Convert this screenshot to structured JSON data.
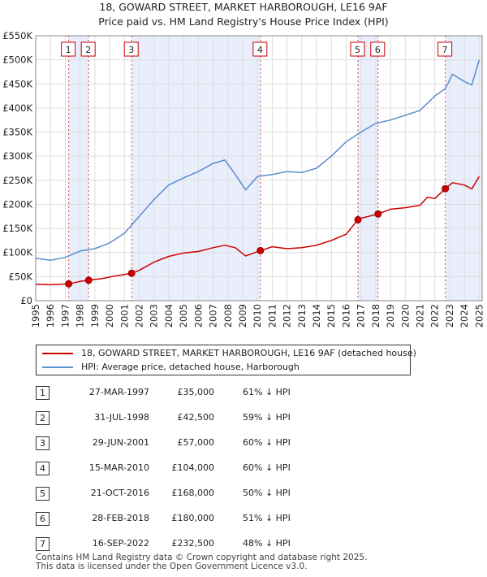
{
  "chart_data": {
    "type": "line",
    "title": "18, GOWARD STREET, MARKET HARBOROUGH, LE16 9AF",
    "subtitle": "Price paid vs. HM Land Registry's House Price Index (HPI)",
    "ylim": [
      0,
      550000
    ],
    "xlim": [
      1995,
      2025.2
    ],
    "yticks": [
      {
        "value": 0,
        "label": "£0"
      },
      {
        "value": 50000,
        "label": "£50K"
      },
      {
        "value": 100000,
        "label": "£100K"
      },
      {
        "value": 150000,
        "label": "£150K"
      },
      {
        "value": 200000,
        "label": "£200K"
      },
      {
        "value": 250000,
        "label": "£250K"
      },
      {
        "value": 300000,
        "label": "£300K"
      },
      {
        "value": 350000,
        "label": "£350K"
      },
      {
        "value": 400000,
        "label": "£400K"
      },
      {
        "value": 450000,
        "label": "£450K"
      },
      {
        "value": 500000,
        "label": "£500K"
      },
      {
        "value": 550000,
        "label": "£550K"
      }
    ],
    "xticks": [
      "1995",
      "1996",
      "1997",
      "1998",
      "1999",
      "2000",
      "2001",
      "2002",
      "2003",
      "2004",
      "2005",
      "2006",
      "2007",
      "2008",
      "2009",
      "2010",
      "2011",
      "2012",
      "2013",
      "2014",
      "2015",
      "2016",
      "2017",
      "2018",
      "2019",
      "2020",
      "2021",
      "2022",
      "2023",
      "2024",
      "2025"
    ],
    "series": [
      {
        "name": "18, GOWARD STREET, MARKET HARBOROUGH, LE16 9AF (detached house)",
        "color": "#cc0000",
        "x": [
          1995,
          1996,
          1997.23,
          1998,
          1998.58,
          1999.5,
          2000.5,
          2001.49,
          2002,
          2003,
          2004,
          2005,
          2006,
          2007,
          2007.8,
          2008.5,
          2009.2,
          2010.2,
          2011,
          2012,
          2013,
          2014,
          2015,
          2016,
          2016.8,
          2017,
          2018.16,
          2019,
          2020,
          2021,
          2021.5,
          2022,
          2022.71,
          2023.2,
          2024,
          2024.5,
          2025
        ],
        "y": [
          34000,
          33000,
          35000,
          40000,
          42500,
          46000,
          52000,
          57000,
          63000,
          80000,
          92000,
          99000,
          102000,
          110000,
          115000,
          110000,
          93000,
          104000,
          112000,
          108000,
          110000,
          115000,
          125000,
          138000,
          168000,
          171000,
          180000,
          190000,
          193000,
          198000,
          215000,
          212000,
          232500,
          245000,
          240000,
          232000,
          258000
        ]
      },
      {
        "name": "HPI: Average price, detached house, Harborough",
        "color": "#5b8ccf",
        "x": [
          1995,
          1996,
          1997,
          1998,
          1999,
          2000,
          2001,
          2002,
          2003,
          2004,
          2005,
          2006,
          2007,
          2007.8,
          2008.5,
          2009.2,
          2010,
          2011,
          2012,
          2013,
          2014,
          2015,
          2016,
          2017,
          2018,
          2019,
          2020,
          2021,
          2022,
          2022.7,
          2023.2,
          2024,
          2024.5,
          2025
        ],
        "y": [
          88000,
          84000,
          90000,
          103000,
          108000,
          120000,
          140000,
          175000,
          210000,
          240000,
          255000,
          268000,
          285000,
          292000,
          262000,
          230000,
          258000,
          262000,
          268000,
          266000,
          275000,
          300000,
          330000,
          350000,
          368000,
          375000,
          385000,
          395000,
          425000,
          440000,
          470000,
          455000,
          448000,
          500000
        ]
      }
    ],
    "sales": [
      {
        "label": "1",
        "x": 1997.23,
        "y": 35000,
        "date": "27-MAR-1997",
        "price": "£35,000",
        "hpi": "61% ↓ HPI"
      },
      {
        "label": "2",
        "x": 1998.58,
        "y": 42500,
        "date": "31-JUL-1998",
        "price": "£42,500",
        "hpi": "59% ↓ HPI"
      },
      {
        "label": "3",
        "x": 2001.49,
        "y": 57000,
        "date": "29-JUN-2001",
        "price": "£57,000",
        "hpi": "60% ↓ HPI"
      },
      {
        "label": "4",
        "x": 2010.2,
        "y": 104000,
        "date": "15-MAR-2010",
        "price": "£104,000",
        "hpi": "60% ↓ HPI"
      },
      {
        "label": "5",
        "x": 2016.8,
        "y": 168000,
        "date": "21-OCT-2016",
        "price": "£168,000",
        "hpi": "50% ↓ HPI"
      },
      {
        "label": "6",
        "x": 2018.16,
        "y": 180000,
        "date": "28-FEB-2018",
        "price": "£180,000",
        "hpi": "51% ↓ HPI"
      },
      {
        "label": "7",
        "x": 2022.71,
        "y": 232500,
        "date": "16-SEP-2022",
        "price": "£232,500",
        "hpi": "48% ↓ HPI"
      }
    ],
    "shaded_periods": [
      [
        1997.23,
        1998.58
      ],
      [
        2001.49,
        2010.2
      ],
      [
        2016.8,
        2018.16
      ],
      [
        2022.71,
        2025.2
      ]
    ]
  },
  "legend": {
    "property": "18, GOWARD STREET, MARKET HARBOROUGH, LE16 9AF (detached house)",
    "hpi": "HPI: Average price, detached house, Harborough"
  },
  "footer": {
    "line1": "Contains HM Land Registry data © Crown copyright and database right 2025.",
    "line2": "This data is licensed under the Open Government Licence v3.0."
  },
  "colors": {
    "property": "#cc0000",
    "hpi": "#5b8ccf",
    "shade": "#e8eefb",
    "grid": "#dddddd"
  }
}
